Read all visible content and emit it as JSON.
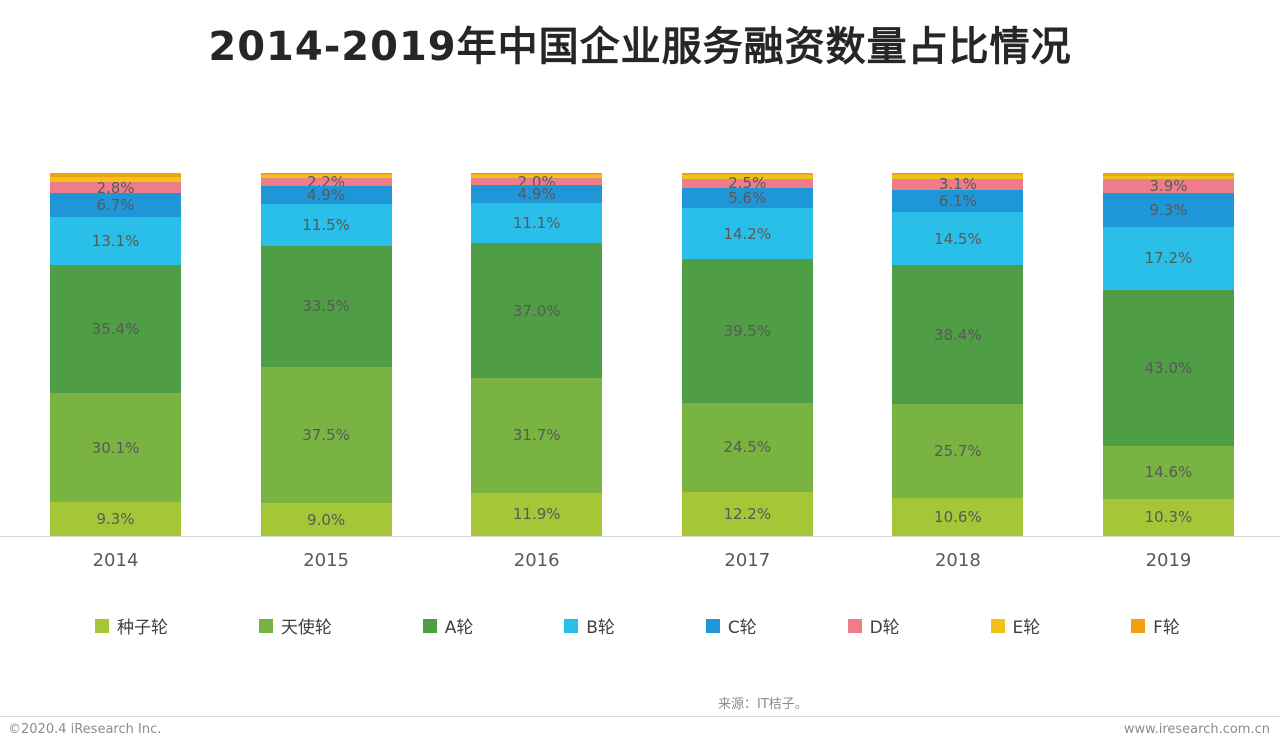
{
  "title": "2014-2019年中国企业服务融资数量占比情况",
  "source_note": "来源：IT桔子。",
  "footer": {
    "left": "©2020.4 iResearch Inc.",
    "right": "www.iresearch.com.cn"
  },
  "chart_data": {
    "type": "bar",
    "stacked": true,
    "percent_stacked": true,
    "unit": "%",
    "title": "2014-2019年中国企业服务融资数量占比情况",
    "categories": [
      "2014",
      "2015",
      "2016",
      "2017",
      "2018",
      "2019"
    ],
    "series": [
      {
        "name": "种子轮",
        "color": "#a5c636",
        "labeled": true,
        "values": [
          9.3,
          9.0,
          11.9,
          12.2,
          10.6,
          10.3
        ]
      },
      {
        "name": "天使轮",
        "color": "#79b342",
        "labeled": true,
        "values": [
          30.1,
          37.5,
          31.7,
          24.5,
          25.7,
          14.6
        ]
      },
      {
        "name": "A轮",
        "color": "#4f9d45",
        "labeled": true,
        "values": [
          35.4,
          33.5,
          37.0,
          39.5,
          38.4,
          43.0
        ]
      },
      {
        "name": "B轮",
        "color": "#29bfe8",
        "labeled": true,
        "values": [
          13.1,
          11.5,
          11.1,
          14.2,
          14.5,
          17.2
        ]
      },
      {
        "name": "C轮",
        "color": "#1e96d7",
        "labeled": true,
        "values": [
          6.7,
          4.9,
          4.9,
          5.6,
          6.1,
          9.3
        ]
      },
      {
        "name": "D轮",
        "color": "#ef7d89",
        "labeled": true,
        "values": [
          2.8,
          2.2,
          2.0,
          2.5,
          3.1,
          3.9
        ]
      },
      {
        "name": "E轮",
        "color": "#efc319",
        "labeled": false,
        "estimated": true,
        "values": [
          1.6,
          0.9,
          0.9,
          0.9,
          1.0,
          1.0
        ]
      },
      {
        "name": "F轮",
        "color": "#efa013",
        "labeled": false,
        "estimated": true,
        "values": [
          1.0,
          0.5,
          0.5,
          0.6,
          0.6,
          0.7
        ]
      }
    ],
    "ylim": [
      0,
      100
    ],
    "grid": false,
    "legend_position": "bottom"
  }
}
